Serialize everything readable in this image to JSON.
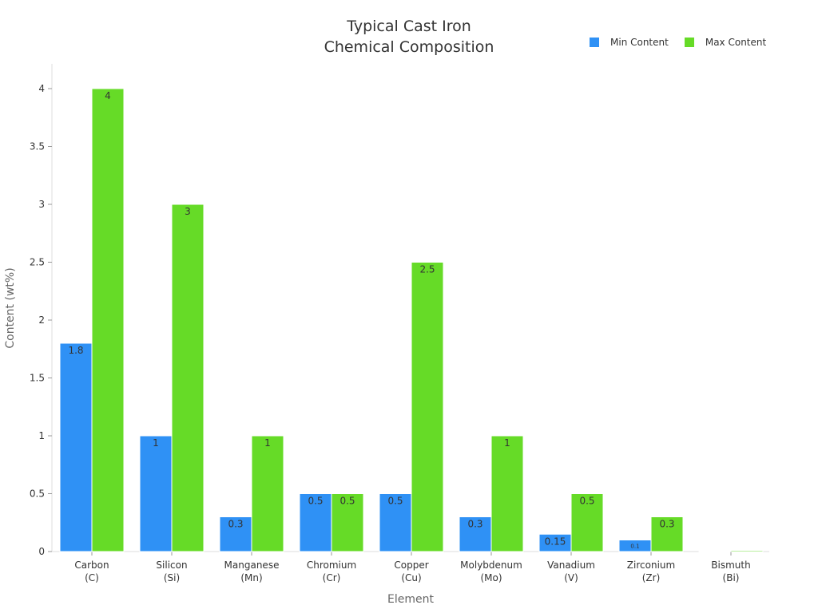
{
  "chart_data": {
    "type": "bar",
    "title": [
      "Typical Cast Iron",
      "Chemical Composition"
    ],
    "xlabel": "Element",
    "ylabel": "Content (wt%)",
    "ylim": [
      0,
      4.2
    ],
    "yticks": [
      "0",
      "0.5",
      "1",
      "1.5",
      "2",
      "2.5",
      "3",
      "3.5",
      "4"
    ],
    "categories": [
      [
        "Carbon",
        "(C)"
      ],
      [
        "Silicon",
        "(Si)"
      ],
      [
        "Manganese",
        "(Mn)"
      ],
      [
        "Chromium",
        "(Cr)"
      ],
      [
        "Copper",
        "(Cu)"
      ],
      [
        "Molybdenum",
        "(Mo)"
      ],
      [
        "Vanadium",
        "(V)"
      ],
      [
        "Zirconium",
        "(Zr)"
      ],
      [
        "Bismuth",
        "(Bi)"
      ]
    ],
    "series": [
      {
        "name": "Min Content",
        "color": "#2f91f5",
        "values": [
          1.8,
          1,
          0.3,
          0.5,
          0.5,
          0.3,
          0.15,
          0.1,
          0.002
        ],
        "labels": [
          "1.8",
          "1",
          "0.3",
          "0.5",
          "0.5",
          "0.3",
          "0.15",
          "0.1",
          ""
        ]
      },
      {
        "name": "Max Content",
        "color": "#66db27",
        "values": [
          4,
          3,
          1,
          0.5,
          2.5,
          1,
          0.5,
          0.3,
          0.01
        ],
        "labels": [
          "4",
          "3",
          "1",
          "0.5",
          "2.5",
          "1",
          "0.5",
          "0.3",
          ""
        ]
      }
    ],
    "grid": false,
    "legend": "top-right"
  }
}
